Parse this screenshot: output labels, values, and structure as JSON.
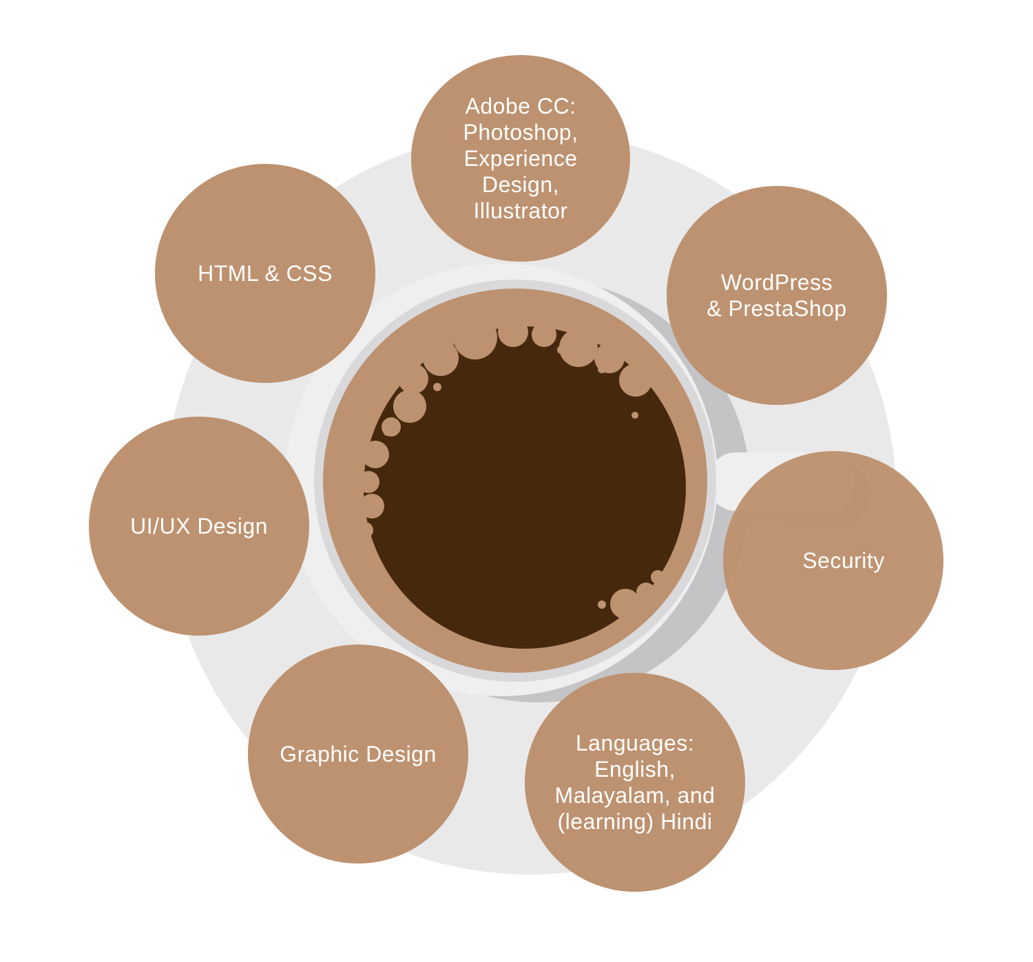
{
  "colors": {
    "background": "#ffffff",
    "saucer": "#e9e9ea",
    "saucer_edge": "#f1f1f2",
    "cup_rim": "#efeff0",
    "cup_shadow": "#c2c2c4",
    "cup_inner_ring": "#d9d9db",
    "coffee_foam": "#bd9270",
    "coffee": "#46280c",
    "bubble_fill": "#bd9270",
    "label_text": "#ffffff"
  },
  "icons": {
    "center": "coffee-cup-icon"
  },
  "skills": [
    {
      "id": "adobe-cc",
      "label": "Adobe CC:\nPhotoshop,\nExperience\nDesign,\nIllustrator"
    },
    {
      "id": "wordpress-prestashop",
      "label": "WordPress\n& PrestaShop"
    },
    {
      "id": "security",
      "label": "Security"
    },
    {
      "id": "languages",
      "label": "Languages:\nEnglish,\nMalayalam, and\n(learning) Hindi"
    },
    {
      "id": "graphic-design",
      "label": "Graphic Design"
    },
    {
      "id": "ui-ux-design",
      "label": "UI/UX Design"
    },
    {
      "id": "html-css",
      "label": "HTML & CSS"
    }
  ]
}
